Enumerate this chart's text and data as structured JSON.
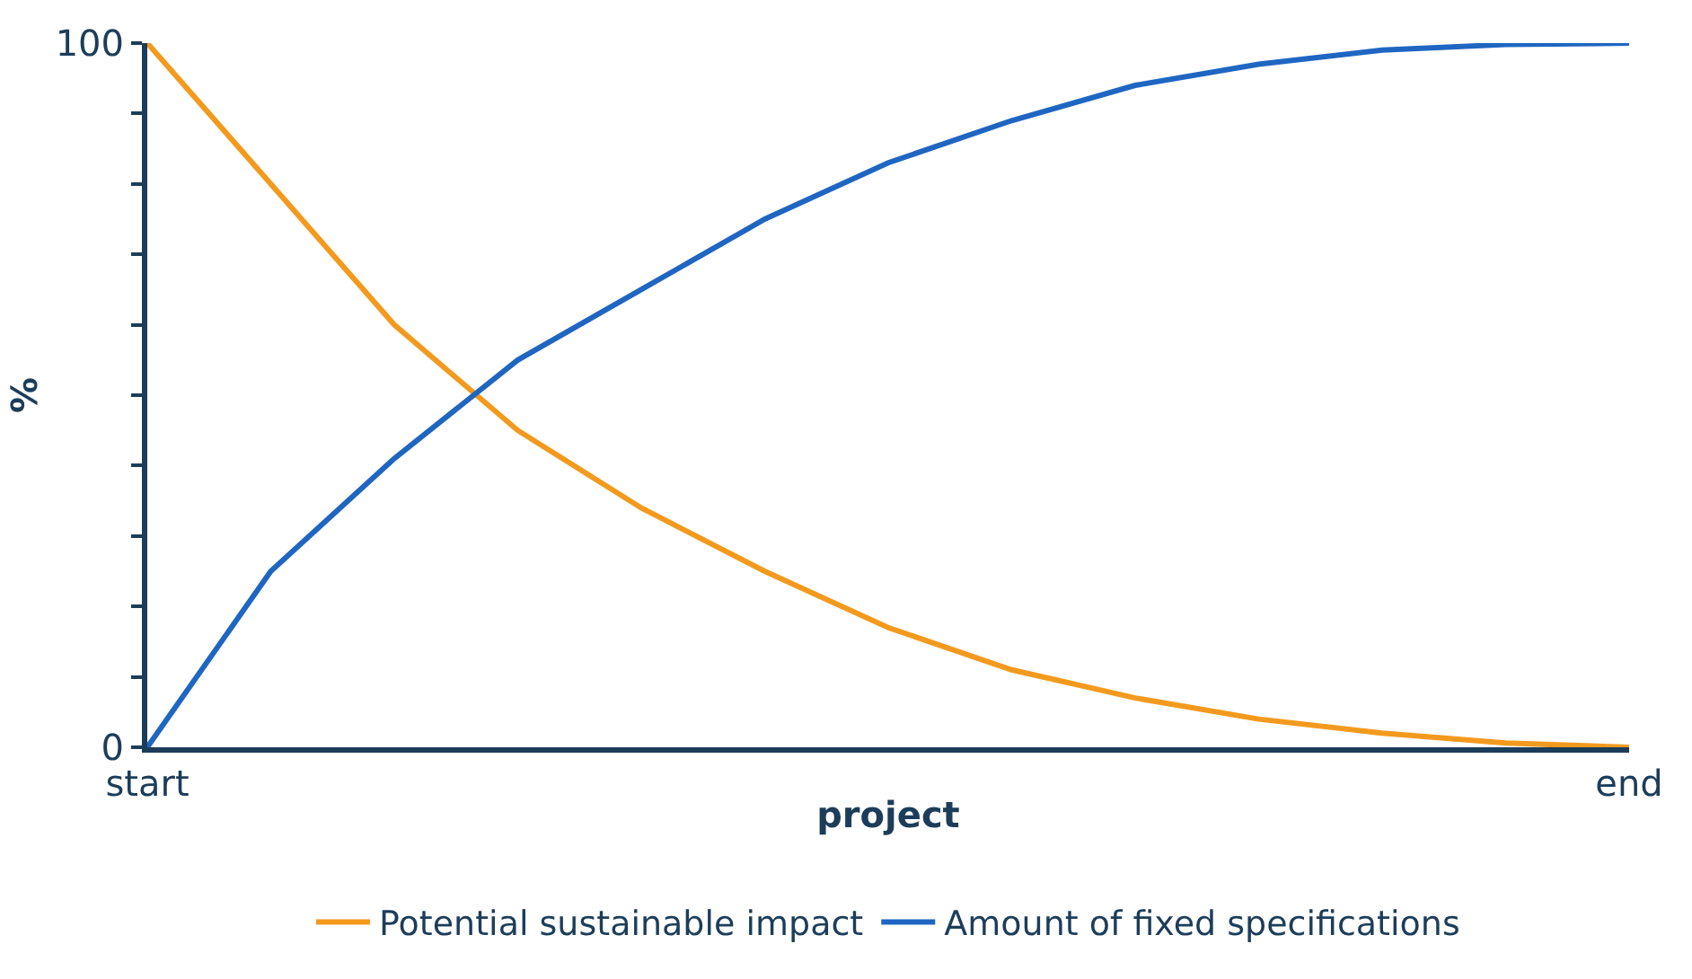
{
  "chart_data": {
    "type": "line",
    "xlabel": "project",
    "ylabel": "%",
    "ylim": [
      0,
      100
    ],
    "yticks": [
      {
        "value": 0,
        "label": "0"
      },
      {
        "value": 10,
        "label": null
      },
      {
        "value": 20,
        "label": null
      },
      {
        "value": 30,
        "label": null
      },
      {
        "value": 40,
        "label": null
      },
      {
        "value": 50,
        "label": null
      },
      {
        "value": 60,
        "label": null
      },
      {
        "value": 70,
        "label": null
      },
      {
        "value": 80,
        "label": null
      },
      {
        "value": 90,
        "label": null
      },
      {
        "value": 100,
        "label": "100"
      }
    ],
    "categories": [
      "start",
      null,
      null,
      null,
      null,
      null,
      null,
      null,
      null,
      null,
      null,
      null,
      "end"
    ],
    "series": [
      {
        "name": "Potential sustainable impact",
        "color": "#f39a1e",
        "values": [
          100,
          80,
          60,
          45,
          34,
          25,
          17,
          11,
          7,
          4,
          2,
          0.6,
          0
        ]
      },
      {
        "name": "Amount of fixed specifications",
        "color": "#1f66c2",
        "values": [
          0,
          25,
          41,
          55,
          65,
          75,
          83,
          89,
          94,
          97,
          99,
          99.8,
          100
        ]
      }
    ],
    "legend": "bottom",
    "marker": "none",
    "line_style": "solid"
  }
}
